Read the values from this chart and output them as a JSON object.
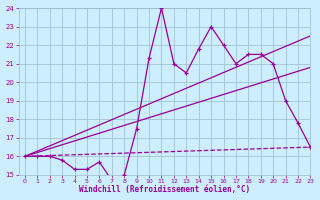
{
  "x": [
    0,
    1,
    2,
    3,
    4,
    5,
    6,
    7,
    8,
    9,
    10,
    11,
    12,
    13,
    14,
    15,
    16,
    17,
    18,
    19,
    20,
    21,
    22,
    23
  ],
  "line1": [
    16.0,
    16.0,
    16.0,
    15.8,
    15.3,
    15.3,
    15.7,
    14.7,
    15.0,
    17.5,
    21.3,
    24.0,
    21.0,
    20.5,
    21.8,
    23.0,
    22.0,
    21.0,
    21.5,
    21.5,
    21.0,
    19.0,
    17.8,
    16.5
  ],
  "line2_x": [
    0,
    23
  ],
  "line2_y": [
    16.0,
    22.5
  ],
  "line3_x": [
    0,
    23
  ],
  "line3_y": [
    16.0,
    20.8
  ],
  "line4_x": [
    0,
    23
  ],
  "line4_y": [
    16.0,
    16.5
  ],
  "color": "#990099",
  "bg_color": "#cceeff",
  "grid_color": "#99bbcc",
  "xlabel": "Windchill (Refroidissement éolien,°C)",
  "ylim": [
    15,
    24
  ],
  "xlim": [
    -0.5,
    23
  ],
  "yticks": [
    15,
    16,
    17,
    18,
    19,
    20,
    21,
    22,
    23,
    24
  ],
  "xticks": [
    0,
    1,
    2,
    3,
    4,
    5,
    6,
    7,
    8,
    9,
    10,
    11,
    12,
    13,
    14,
    15,
    16,
    17,
    18,
    19,
    20,
    21,
    22,
    23
  ]
}
